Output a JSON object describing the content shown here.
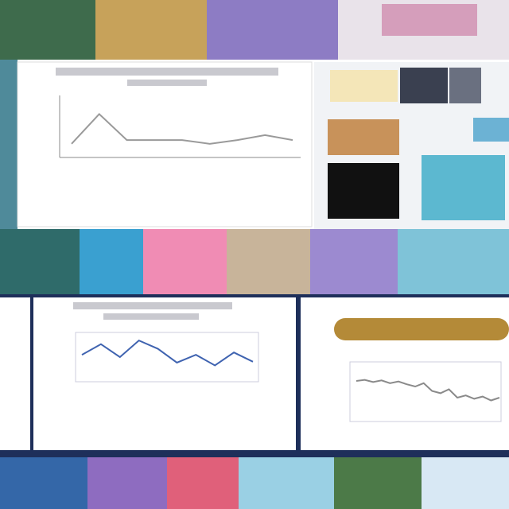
{
  "charts": [
    {
      "type": "line",
      "color": "#9a9a9a",
      "ylim": [
        0,
        100
      ],
      "values": [
        22,
        70,
        28,
        28,
        28,
        22,
        28,
        36,
        28
      ]
    },
    {
      "type": "line",
      "color": "#3f63b0",
      "ylim": [
        0,
        100
      ],
      "values": [
        55,
        78,
        50,
        86,
        68,
        38,
        55,
        32,
        60,
        40
      ]
    },
    {
      "type": "line",
      "color": "#8a8a8a",
      "ylim": [
        0,
        100
      ],
      "values": [
        70,
        72,
        68,
        71,
        66,
        69,
        64,
        60,
        66,
        52,
        48,
        55,
        40,
        44,
        38,
        42,
        35,
        40
      ]
    }
  ]
}
